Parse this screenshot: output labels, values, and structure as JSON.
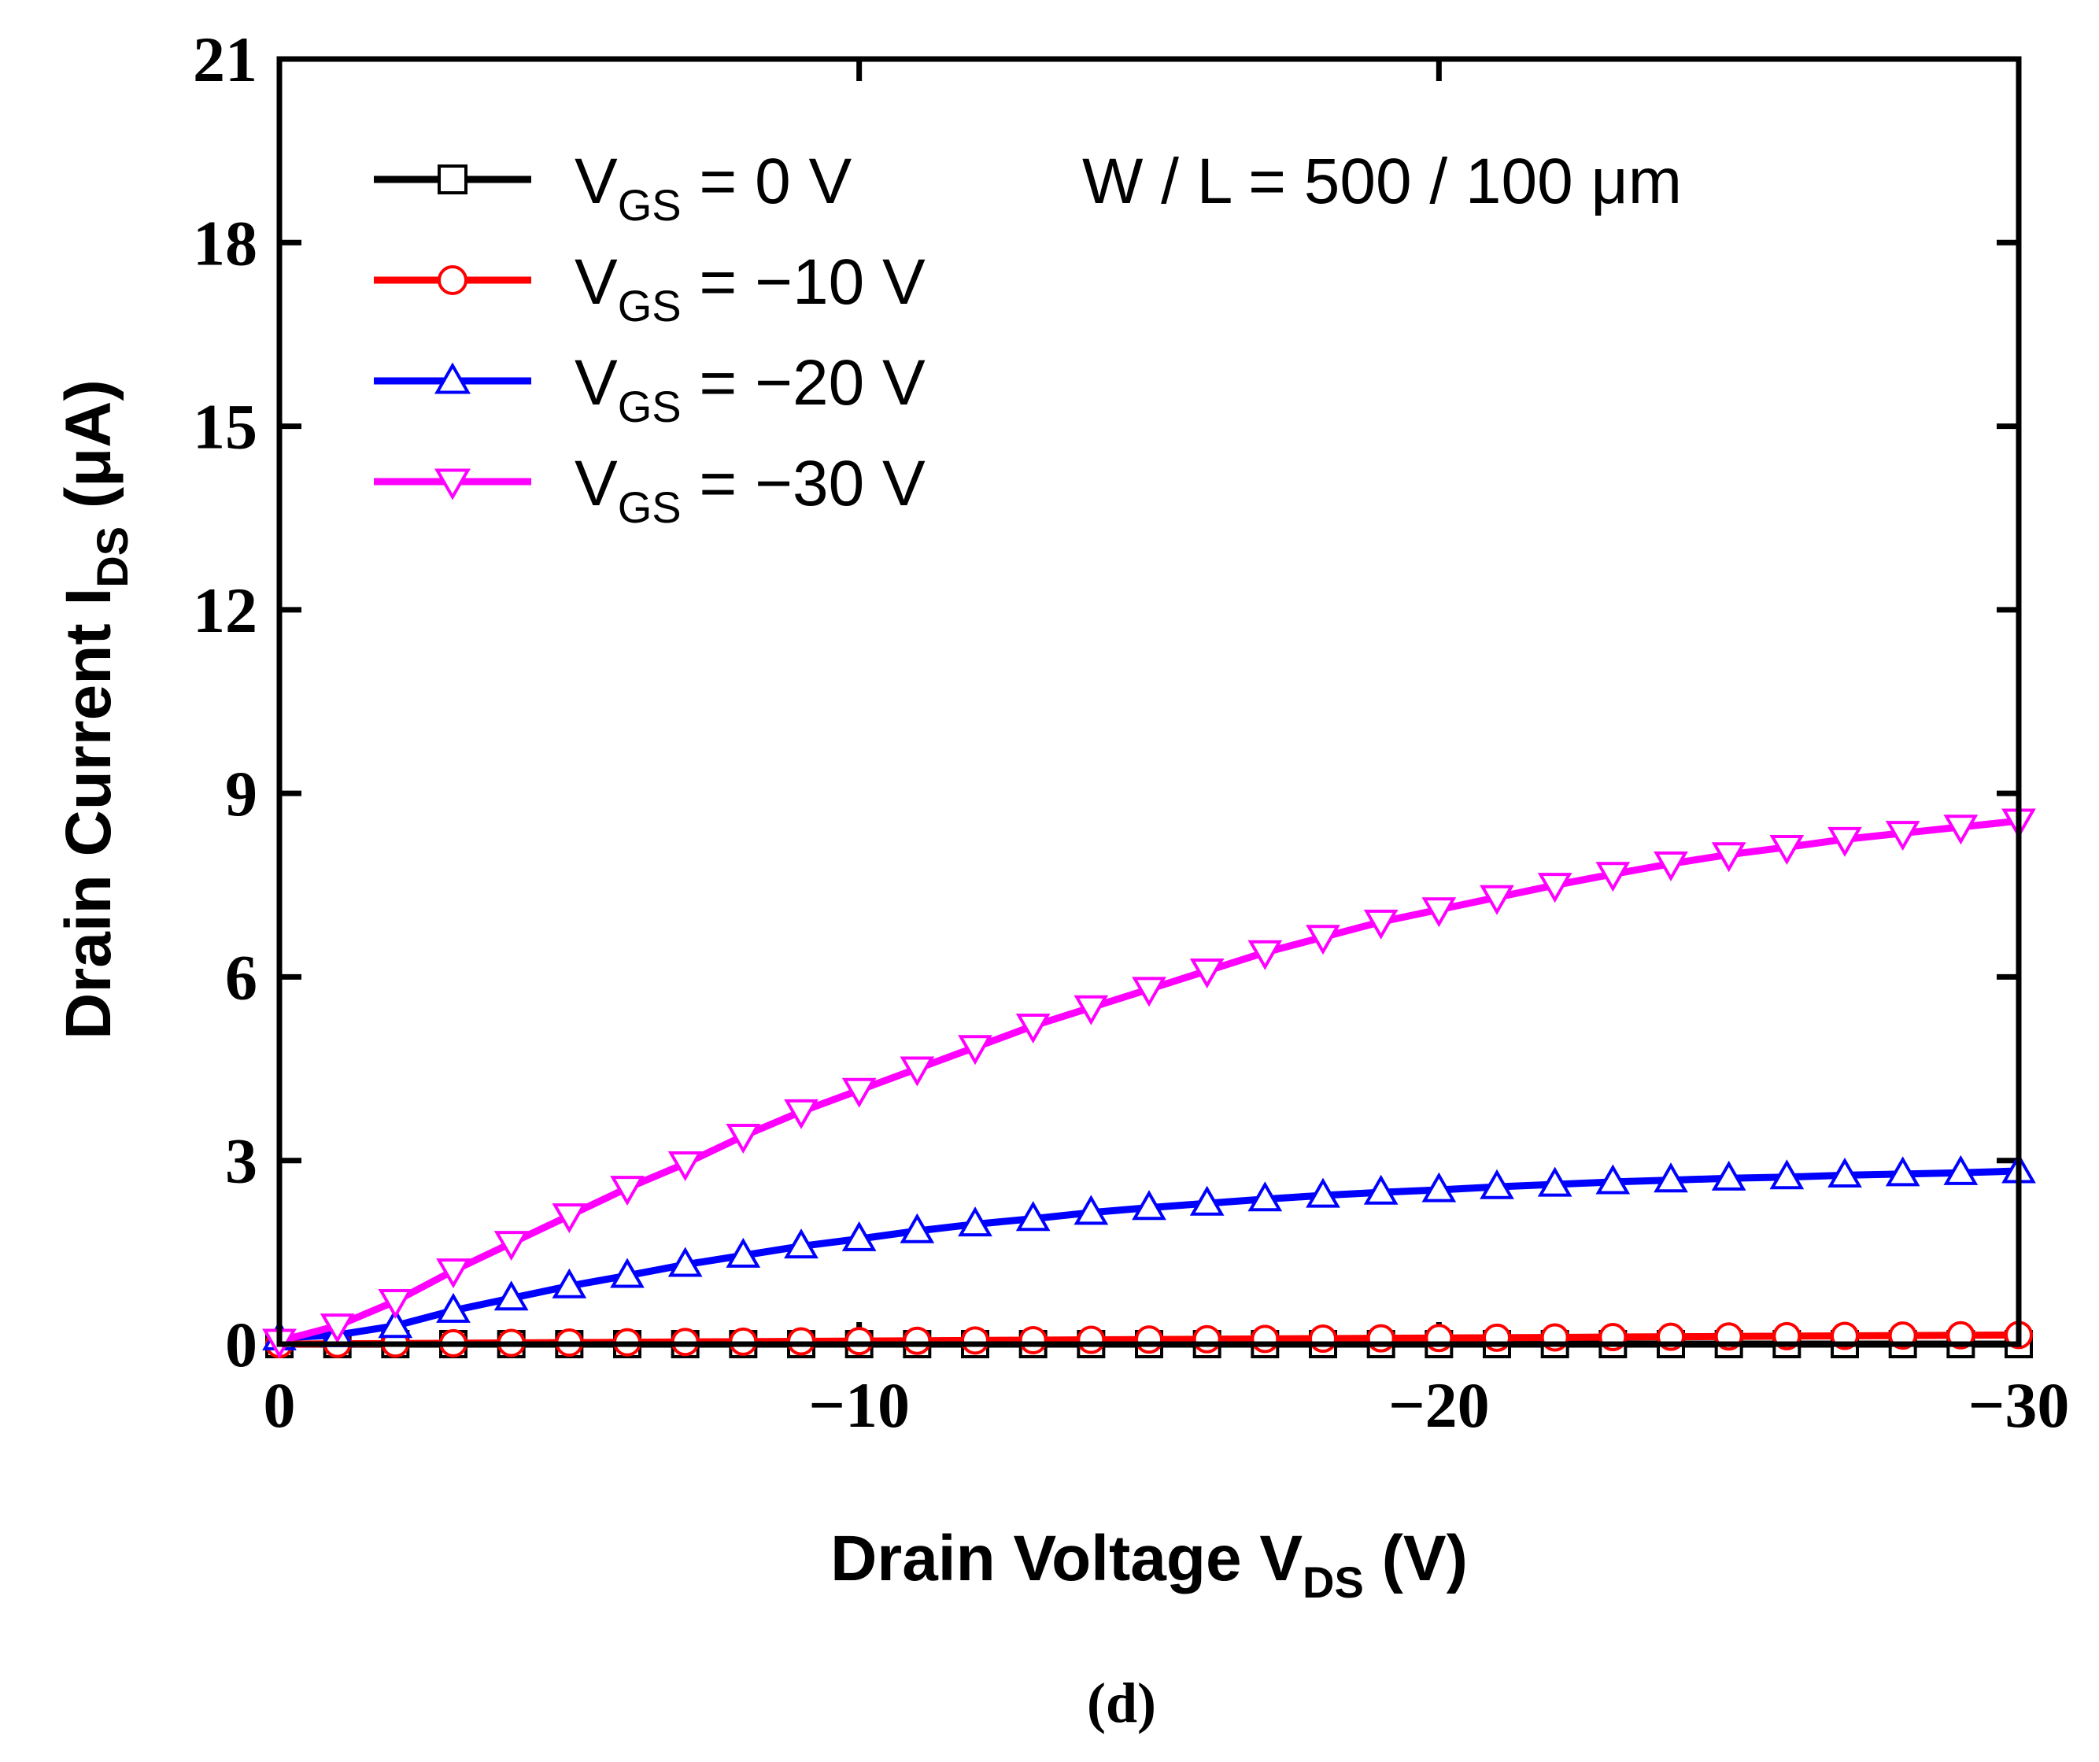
{
  "chart_data": {
    "type": "line",
    "xlabel": {
      "main": "Drain Voltage V",
      "sub": "DS",
      "unit": " (V)"
    },
    "ylabel": {
      "main": "Drain Current I",
      "sub": "DS",
      "unit": " (μA)"
    },
    "xlim": [
      0,
      -30
    ],
    "ylim": [
      0,
      21
    ],
    "xticks": [
      0,
      -10,
      -20,
      -30
    ],
    "xtick_labels": [
      "0",
      "−10",
      "−20",
      "−30"
    ],
    "yticks": [
      0,
      3,
      6,
      9,
      12,
      15,
      18,
      21
    ],
    "ytick_labels": [
      "0",
      "3",
      "6",
      "9",
      "12",
      "15",
      "18",
      "21"
    ],
    "annotation": "W / L = 500 / 100 μm",
    "caption": "(d)",
    "legend_position": "top-left",
    "x": [
      0,
      -1,
      -2,
      -3,
      -4,
      -5,
      -6,
      -7,
      -8,
      -9,
      -10,
      -11,
      -12,
      -13,
      -14,
      -15,
      -16,
      -17,
      -18,
      -19,
      -20,
      -21,
      -22,
      -23,
      -24,
      -25,
      -26,
      -27,
      -28,
      -29,
      -30
    ],
    "series": [
      {
        "label_main": "V",
        "label_sub": "GS",
        "label_rest": " = 0 V",
        "color": "#000000",
        "marker": "square",
        "values": [
          0,
          0,
          0,
          0,
          0,
          0,
          0,
          0,
          0,
          0,
          0,
          0,
          0,
          0,
          0,
          0,
          0,
          0,
          0,
          0,
          0,
          0,
          0,
          0,
          0,
          0,
          0,
          0,
          0,
          0,
          0
        ]
      },
      {
        "label_main": "V",
        "label_sub": "GS",
        "label_rest": " = −10 V",
        "color": "#ff0000",
        "marker": "circle",
        "values": [
          0,
          0.005,
          0.01,
          0.015,
          0.02,
          0.025,
          0.03,
          0.035,
          0.04,
          0.045,
          0.05,
          0.055,
          0.06,
          0.065,
          0.07,
          0.075,
          0.08,
          0.085,
          0.09,
          0.095,
          0.1,
          0.105,
          0.11,
          0.115,
          0.12,
          0.125,
          0.13,
          0.135,
          0.14,
          0.145,
          0.15
        ]
      },
      {
        "label_main": "V",
        "label_sub": "GS",
        "label_rest": " = −20 V",
        "color": "#0000ff",
        "marker": "triangle-up",
        "values": [
          0.1,
          0.15,
          0.3,
          0.55,
          0.75,
          0.95,
          1.12,
          1.3,
          1.45,
          1.6,
          1.72,
          1.85,
          1.96,
          2.05,
          2.15,
          2.23,
          2.3,
          2.37,
          2.43,
          2.48,
          2.52,
          2.57,
          2.61,
          2.65,
          2.68,
          2.71,
          2.73,
          2.76,
          2.78,
          2.8,
          2.83
        ]
      },
      {
        "label_main": "V",
        "label_sub": "GS",
        "label_rest": " = −30 V",
        "color": "#ff00ff",
        "marker": "triangle-down",
        "values": [
          0.05,
          0.3,
          0.7,
          1.2,
          1.65,
          2.1,
          2.55,
          2.95,
          3.4,
          3.8,
          4.15,
          4.5,
          4.85,
          5.2,
          5.5,
          5.8,
          6.1,
          6.4,
          6.65,
          6.9,
          7.1,
          7.3,
          7.5,
          7.68,
          7.85,
          8.0,
          8.12,
          8.25,
          8.35,
          8.45,
          8.55
        ]
      }
    ]
  }
}
